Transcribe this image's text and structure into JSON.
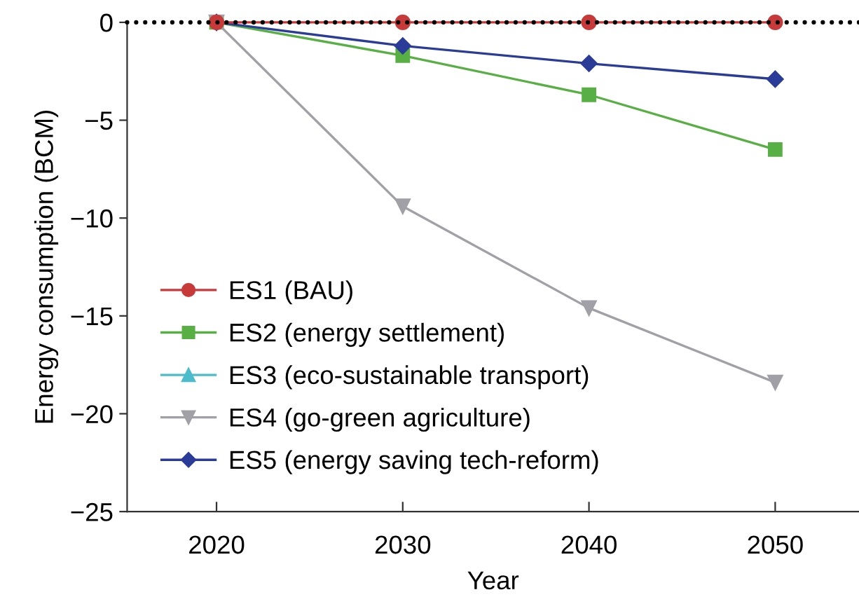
{
  "chart_data": {
    "type": "line",
    "x": [
      2020,
      2030,
      2040,
      2050
    ],
    "xlabel": "Year",
    "ylabel": "Energy consumption (BCM)",
    "xlim": [
      2015.2,
      2054.5
    ],
    "xticks": [
      2020,
      2030,
      2040,
      2050
    ],
    "ylim": [
      -25,
      0
    ],
    "yticks": [
      {
        "value": 0,
        "label": "0"
      },
      {
        "value": -5,
        "label": "−5"
      },
      {
        "value": -10,
        "label": "−10"
      },
      {
        "value": -15,
        "label": "−15"
      },
      {
        "value": -20,
        "label": "−20"
      },
      {
        "value": -25,
        "label": "−25"
      }
    ],
    "series": [
      {
        "name": "ES1 (BAU)",
        "color": "#c83a3a",
        "marker": "circle",
        "values": [
          0,
          0,
          0,
          0
        ]
      },
      {
        "name": "ES2 (energy settlement)",
        "color": "#58b044",
        "marker": "square",
        "values": [
          0,
          -1.7,
          -3.7,
          -6.5
        ]
      },
      {
        "name": "ES3 (eco-sustainable transport)",
        "color": "#4bbccc",
        "marker": "triangle",
        "values": [
          null,
          null,
          null,
          null
        ]
      },
      {
        "name": "ES4 (go-green agriculture)",
        "color": "#a0a0a6",
        "marker": "triangle_down",
        "values": [
          0,
          -9.4,
          -14.6,
          -18.4
        ]
      },
      {
        "name": "ES5 (energy saving tech-reform)",
        "color": "#2a3c98",
        "marker": "diamond",
        "values": [
          0,
          -1.2,
          -2.1,
          -2.9
        ]
      }
    ],
    "ref_lines": [
      {
        "axis": "y",
        "value": 0,
        "color": "#000000",
        "line_style": "dotted"
      }
    ],
    "legend": "bottom left",
    "grid": false
  }
}
